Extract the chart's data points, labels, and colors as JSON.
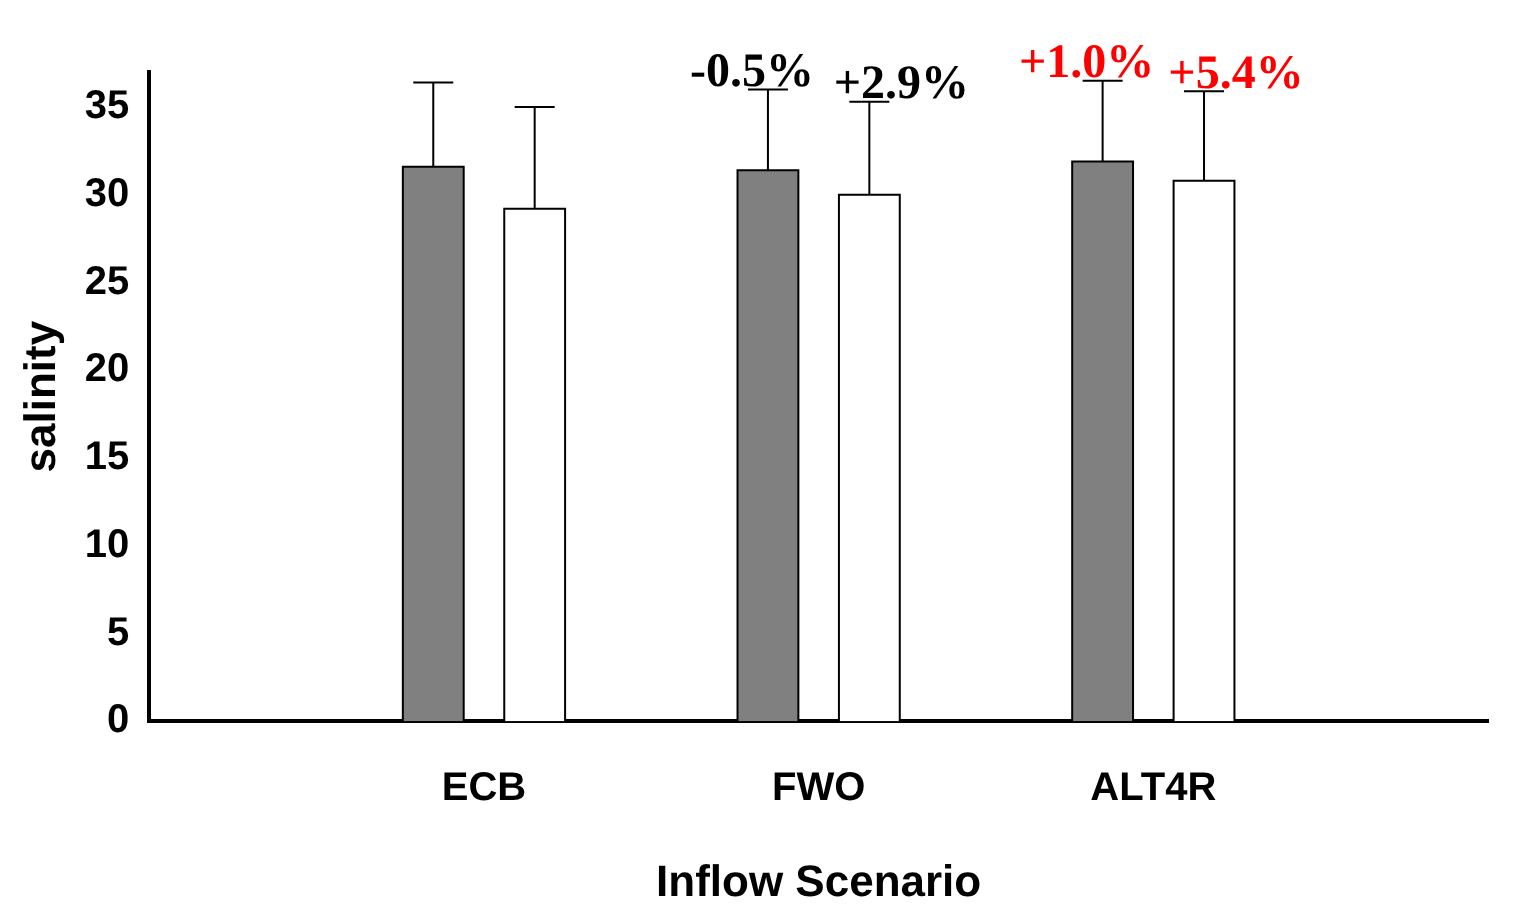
{
  "chart_data": {
    "type": "bar",
    "xlabel": "Inflow Scenario",
    "ylabel": "salinity",
    "categories": [
      null,
      "ECB",
      "FWO",
      "ALT4R",
      null
    ],
    "series": [
      {
        "color": "#808080",
        "values": [
          null,
          31.6,
          31.4,
          31.9,
          null
        ],
        "errors": [
          null,
          [
            31.6,
            36.4
          ],
          [
            31.4,
            36.0
          ],
          [
            31.9,
            36.5
          ],
          null
        ]
      },
      {
        "color": "#ffffff",
        "values": [
          null,
          29.2,
          30.0,
          30.8,
          null
        ],
        "errors": [
          null,
          [
            29.2,
            35.0
          ],
          [
            30.0,
            35.3
          ],
          [
            30.8,
            35.9
          ],
          null
        ]
      }
    ],
    "annotations": [
      "-0.5%",
      "+2.9%",
      "+1.0%",
      "+5.4%"
    ],
    "ylim": [
      0,
      37
    ],
    "yticks": [
      0,
      5,
      10,
      15,
      20,
      25,
      30,
      35
    ],
    "grid": false,
    "legend": false
  }
}
